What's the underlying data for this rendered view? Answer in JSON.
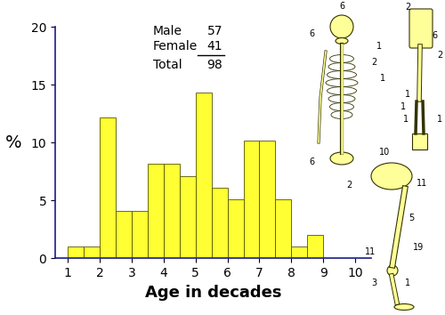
{
  "chart_data": {
    "type": "histogram",
    "bins": [
      1,
      1.5,
      2,
      2.5,
      3,
      3.5,
      4,
      4.5,
      5,
      5.5,
      6,
      6.5,
      7,
      7.5,
      8,
      8.5,
      9
    ],
    "values": [
      1,
      1,
      12.2,
      4.1,
      4.1,
      8.2,
      8.2,
      7.1,
      14.3,
      6.1,
      5.1,
      10.2,
      10.2,
      5.1,
      1,
      2
    ],
    "color": "#ffff33",
    "xlabel": "Age in decades",
    "ylabel": "%",
    "xlim": [
      0.6,
      10.5
    ],
    "xticks": [
      1,
      2,
      3,
      4,
      5,
      6,
      7,
      8,
      9,
      10
    ],
    "ylim": [
      0,
      20
    ],
    "yticks": [
      0,
      5,
      10,
      15,
      20
    ]
  },
  "sex_counts": {
    "rows": [
      {
        "label": "Male",
        "value": 57
      },
      {
        "label": "Female",
        "value": 41
      }
    ],
    "total": {
      "label": "Total",
      "value": 98
    }
  },
  "skeleton": {
    "axial": [
      6,
      6,
      1,
      2,
      1,
      6
    ],
    "upper_limb": [
      2,
      6,
      2,
      1,
      1,
      1,
      1
    ],
    "lower_limb": [
      10,
      2,
      11,
      5,
      19,
      11,
      3,
      1
    ]
  }
}
